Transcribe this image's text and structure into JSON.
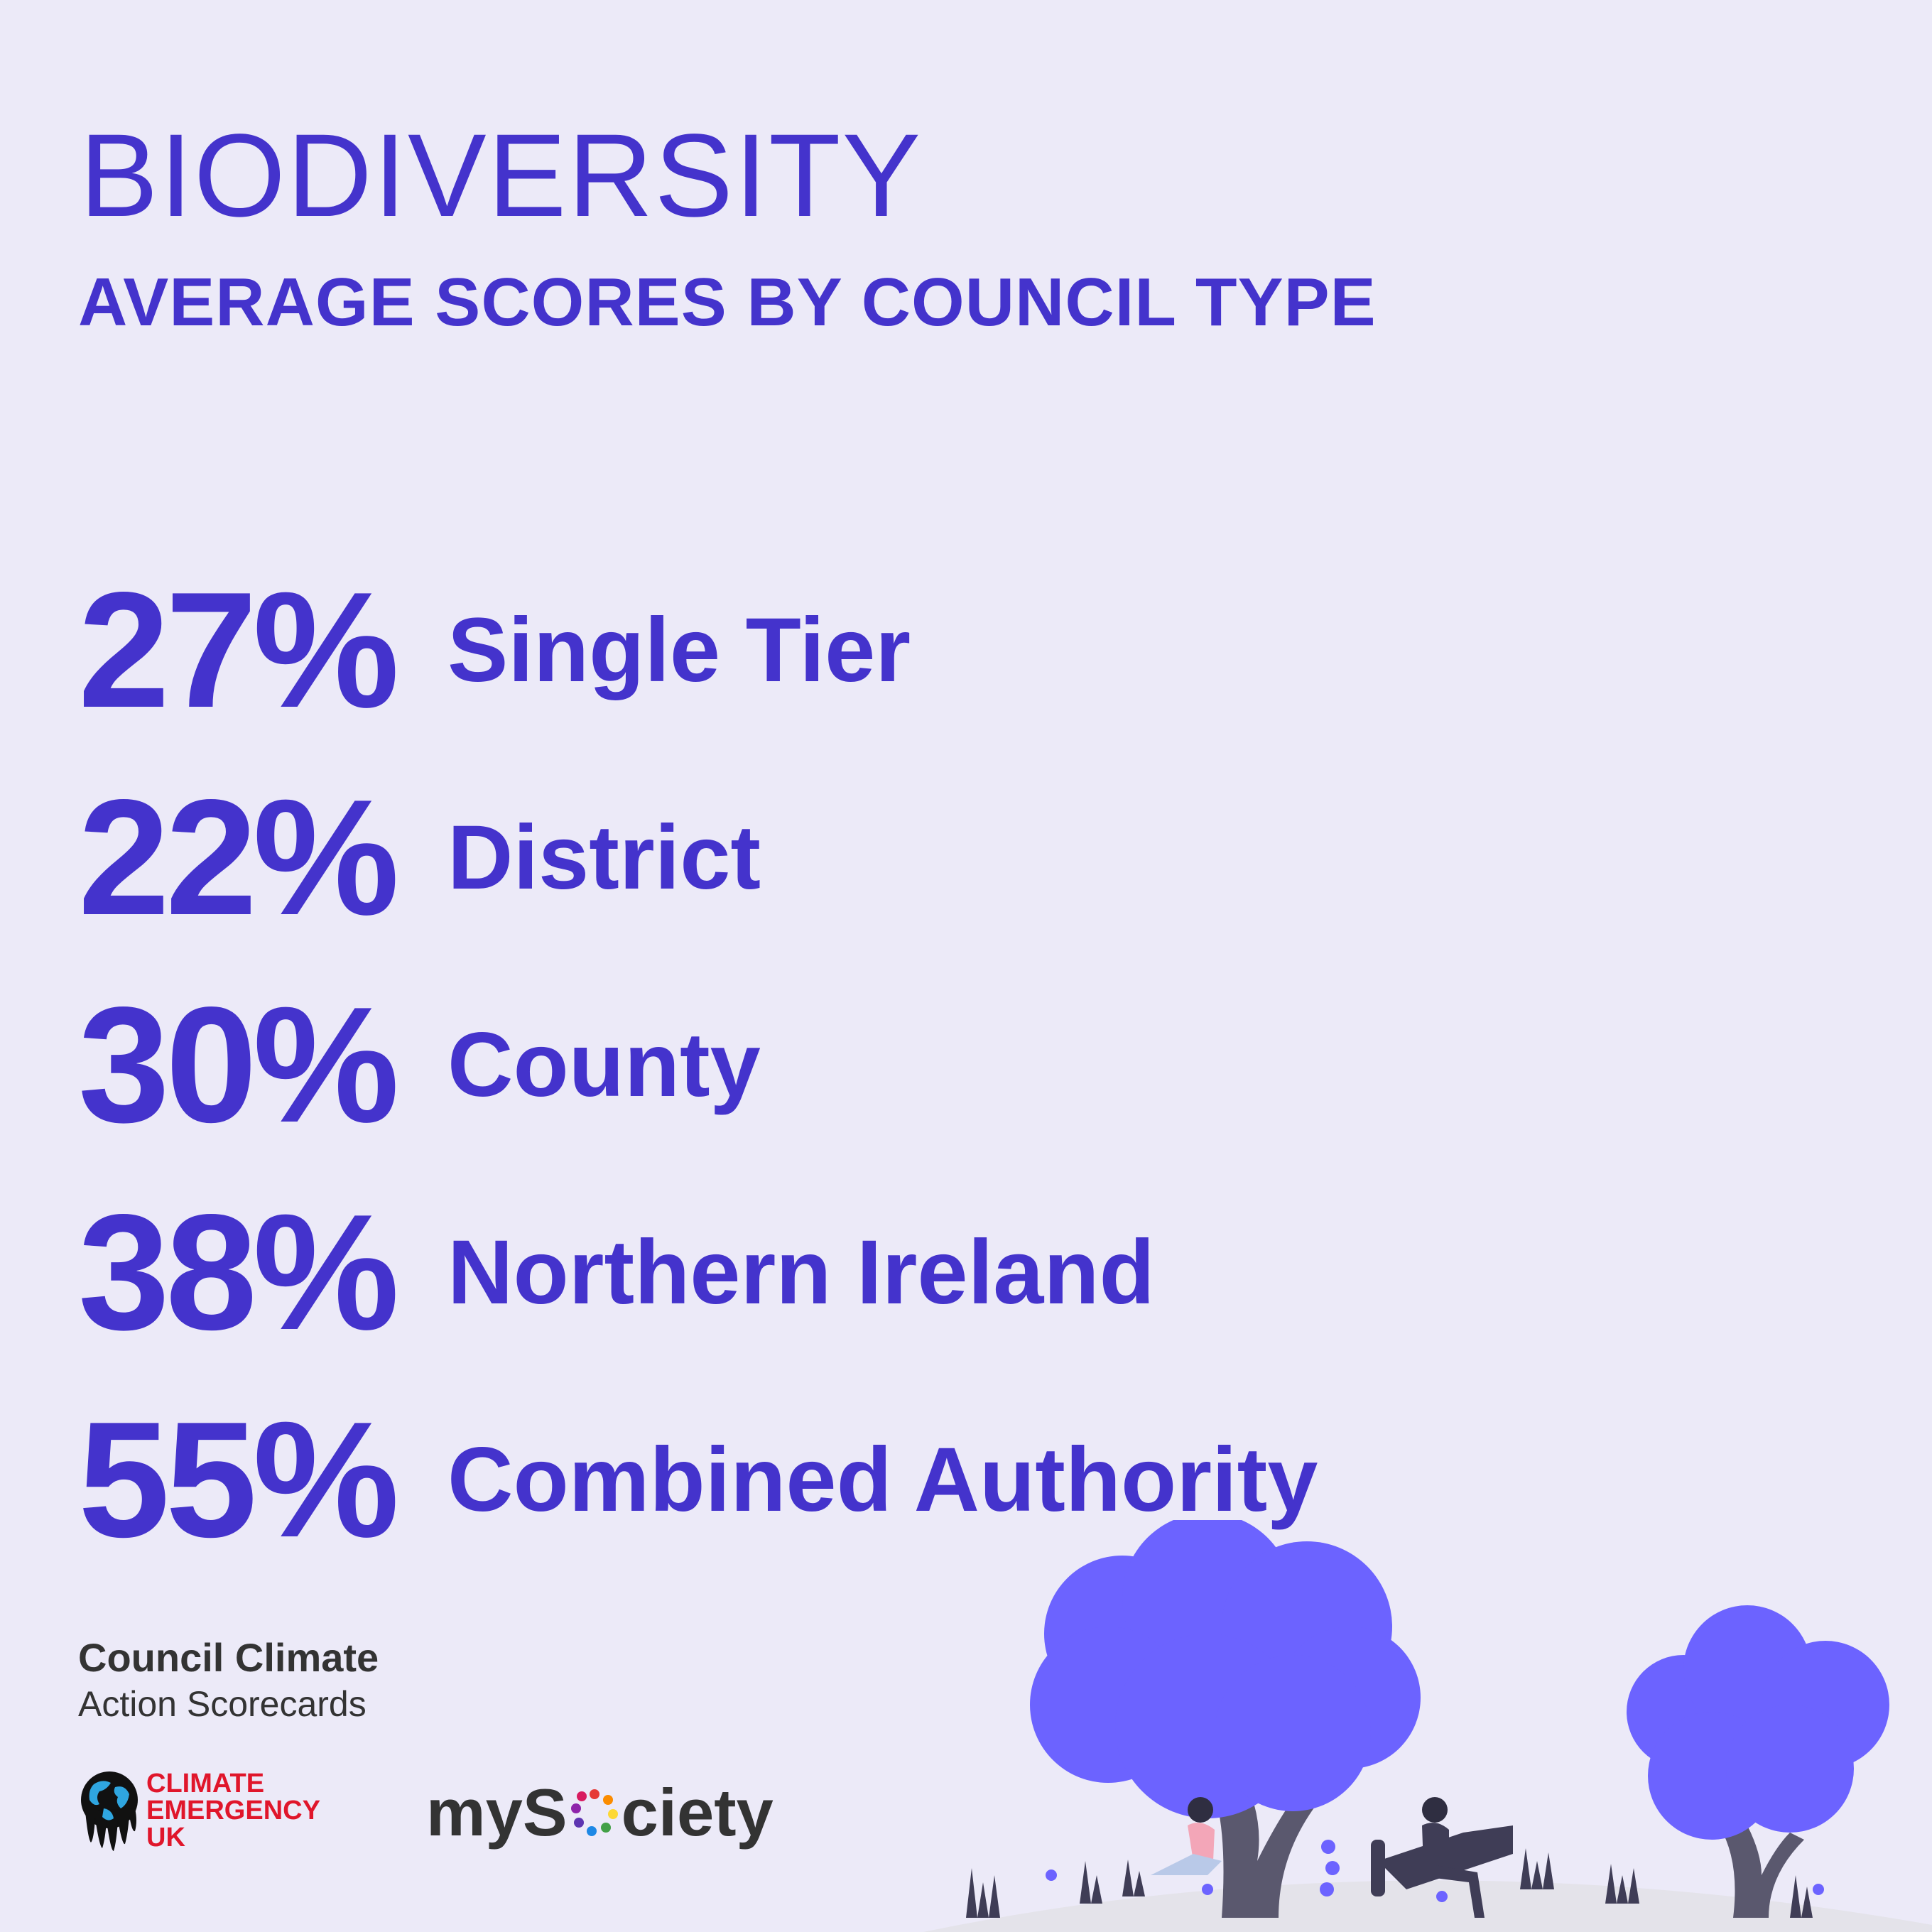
{
  "header": {
    "title": "BIODIVERSITY",
    "subtitle": "AVERAGE SCORES BY COUNCIL TYPE"
  },
  "stats": [
    {
      "value": "27%",
      "label": "Single Tier"
    },
    {
      "value": "22%",
      "label": "District"
    },
    {
      "value": "30%",
      "label": "County"
    },
    {
      "value": "38%",
      "label": "Northern Ireland"
    },
    {
      "value": "55%",
      "label": "Combined Authority"
    }
  ],
  "brand": {
    "line1": "Council Climate",
    "line2": "Action Scorecards"
  },
  "logos": {
    "ceuk": [
      "CLIMATE",
      "EMERGENCY",
      "UK"
    ],
    "mysociety_prefix": "myS",
    "mysociety_suffix": "ciety"
  },
  "colors": {
    "background": "#ECEAF8",
    "accent": "#4433CC",
    "tree": "#6C63FF",
    "ceuk_red": "#E0162B"
  }
}
